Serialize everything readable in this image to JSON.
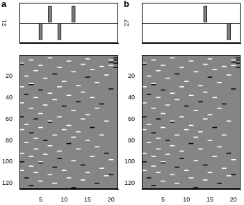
{
  "chart_data": [
    {
      "type": "bar",
      "title": "a",
      "y_label": "21",
      "x": [
        5,
        7,
        9,
        12
      ],
      "values": [
        -1,
        1,
        -1,
        1
      ],
      "color": "#808080",
      "xlim": [
        0.5,
        21.5
      ],
      "xticks": [],
      "ylim": [
        -1.2,
        1.2
      ],
      "yticks": [
        0
      ],
      "grid": true,
      "tick_labels": false
    },
    {
      "type": "heatmap",
      "fill_value": 0,
      "zlim": [
        -1,
        1
      ],
      "cells": [
        [
          1,
          8,
          1
        ],
        [
          1,
          9,
          -1
        ],
        [
          1,
          30,
          1
        ],
        [
          1,
          45,
          1
        ],
        [
          1,
          58,
          -1
        ],
        [
          1,
          70,
          1
        ],
        [
          1,
          92,
          1
        ],
        [
          1,
          100,
          -1
        ],
        [
          1,
          108,
          1
        ],
        [
          2,
          20,
          1
        ],
        [
          2,
          37,
          -1
        ],
        [
          2,
          65,
          1
        ],
        [
          2,
          82,
          1
        ],
        [
          2,
          115,
          -1
        ],
        [
          3,
          5,
          1
        ],
        [
          3,
          27,
          1
        ],
        [
          3,
          28,
          -1
        ],
        [
          3,
          50,
          1
        ],
        [
          3,
          73,
          -1
        ],
        [
          3,
          95,
          1
        ],
        [
          3,
          104,
          1
        ],
        [
          3,
          122,
          -1
        ],
        [
          4,
          15,
          1
        ],
        [
          4,
          40,
          1
        ],
        [
          4,
          60,
          -1
        ],
        [
          4,
          78,
          1
        ],
        [
          4,
          88,
          1
        ],
        [
          4,
          110,
          1
        ],
        [
          5,
          10,
          1
        ],
        [
          5,
          33,
          -1
        ],
        [
          5,
          55,
          1
        ],
        [
          5,
          68,
          1
        ],
        [
          5,
          100,
          1
        ],
        [
          5,
          101,
          -1
        ],
        [
          5,
          118,
          1
        ],
        [
          6,
          22,
          1
        ],
        [
          6,
          47,
          1
        ],
        [
          6,
          80,
          -1
        ],
        [
          6,
          93,
          1
        ],
        [
          7,
          3,
          1
        ],
        [
          7,
          36,
          1
        ],
        [
          7,
          62,
          1
        ],
        [
          7,
          63,
          -1
        ],
        [
          7,
          85,
          1
        ],
        [
          7,
          112,
          1
        ],
        [
          8,
          18,
          -1
        ],
        [
          8,
          42,
          1
        ],
        [
          8,
          75,
          1
        ],
        [
          8,
          105,
          -1
        ],
        [
          8,
          120,
          1
        ],
        [
          9,
          12,
          1
        ],
        [
          9,
          30,
          1
        ],
        [
          9,
          58,
          1
        ],
        [
          9,
          90,
          1
        ],
        [
          9,
          97,
          -1
        ],
        [
          10,
          25,
          1
        ],
        [
          10,
          48,
          -1
        ],
        [
          10,
          70,
          1
        ],
        [
          10,
          108,
          1
        ],
        [
          11,
          6,
          1
        ],
        [
          11,
          38,
          1
        ],
        [
          11,
          66,
          1
        ],
        [
          11,
          83,
          -1
        ],
        [
          11,
          115,
          1
        ],
        [
          12,
          16,
          1
        ],
        [
          12,
          52,
          1
        ],
        [
          12,
          77,
          1
        ],
        [
          12,
          99,
          1
        ],
        [
          12,
          124,
          -1
        ],
        [
          13,
          29,
          1
        ],
        [
          13,
          44,
          -1
        ],
        [
          13,
          72,
          1
        ],
        [
          13,
          88,
          1
        ],
        [
          14,
          9,
          1
        ],
        [
          14,
          35,
          1
        ],
        [
          14,
          60,
          1
        ],
        [
          14,
          103,
          -1
        ],
        [
          14,
          117,
          1
        ],
        [
          15,
          4,
          1
        ],
        [
          15,
          21,
          -1
        ],
        [
          15,
          56,
          1
        ],
        [
          15,
          80,
          1
        ],
        [
          15,
          110,
          1
        ],
        [
          16,
          14,
          1
        ],
        [
          16,
          40,
          1
        ],
        [
          16,
          68,
          -1
        ],
        [
          16,
          95,
          1
        ],
        [
          17,
          26,
          1
        ],
        [
          17,
          50,
          1
        ],
        [
          17,
          86,
          1
        ],
        [
          17,
          120,
          -1
        ],
        [
          18,
          11,
          1
        ],
        [
          18,
          46,
          -1
        ],
        [
          18,
          75,
          1
        ],
        [
          18,
          106,
          1
        ],
        [
          19,
          19,
          1
        ],
        [
          19,
          62,
          1
        ],
        [
          19,
          92,
          -1
        ],
        [
          19,
          113,
          1
        ],
        [
          20,
          5,
          1
        ],
        [
          20,
          7,
          -1
        ],
        [
          20,
          10,
          1
        ],
        [
          20,
          32,
          -1
        ],
        [
          20,
          98,
          1
        ],
        [
          20,
          112,
          -1
        ],
        [
          21,
          3,
          -1
        ],
        [
          21,
          5,
          -1
        ],
        [
          21,
          8,
          -1
        ],
        [
          21,
          12,
          -1
        ]
      ],
      "xlim": [
        0.5,
        21.5
      ],
      "xticks": [
        5,
        10,
        15,
        20
      ],
      "ylim": [
        125.5,
        0.5
      ],
      "yticks": [
        20,
        40,
        60,
        80,
        100,
        120
      ]
    },
    {
      "type": "bar",
      "title": "b",
      "y_label": "27",
      "x": [
        14,
        19
      ],
      "values": [
        1,
        -1
      ],
      "color": "#808080",
      "xlim": [
        0.5,
        21.5
      ],
      "xticks": [],
      "ylim": [
        -1.2,
        1.2
      ],
      "yticks": [
        0
      ],
      "grid": true,
      "tick_labels": false
    },
    {
      "type": "heatmap",
      "fill_value": 0,
      "zlim": [
        -1,
        1
      ],
      "cells": [
        [
          1,
          8,
          1
        ],
        [
          1,
          9,
          -1
        ],
        [
          1,
          30,
          1
        ],
        [
          1,
          45,
          1
        ],
        [
          1,
          58,
          -1
        ],
        [
          1,
          70,
          1
        ],
        [
          1,
          92,
          1
        ],
        [
          1,
          100,
          -1
        ],
        [
          1,
          108,
          1
        ],
        [
          2,
          20,
          1
        ],
        [
          2,
          37,
          -1
        ],
        [
          2,
          65,
          1
        ],
        [
          2,
          82,
          1
        ],
        [
          2,
          115,
          -1
        ],
        [
          3,
          5,
          1
        ],
        [
          3,
          27,
          1
        ],
        [
          3,
          28,
          -1
        ],
        [
          3,
          50,
          1
        ],
        [
          3,
          73,
          -1
        ],
        [
          3,
          95,
          1
        ],
        [
          3,
          104,
          1
        ],
        [
          3,
          122,
          -1
        ],
        [
          4,
          15,
          1
        ],
        [
          4,
          40,
          1
        ],
        [
          4,
          60,
          -1
        ],
        [
          4,
          78,
          1
        ],
        [
          4,
          88,
          1
        ],
        [
          4,
          110,
          1
        ],
        [
          5,
          10,
          1
        ],
        [
          5,
          33,
          -1
        ],
        [
          5,
          55,
          1
        ],
        [
          5,
          68,
          1
        ],
        [
          5,
          100,
          1
        ],
        [
          5,
          101,
          -1
        ],
        [
          5,
          118,
          1
        ],
        [
          6,
          22,
          1
        ],
        [
          6,
          47,
          1
        ],
        [
          6,
          80,
          -1
        ],
        [
          6,
          93,
          1
        ],
        [
          7,
          3,
          1
        ],
        [
          7,
          36,
          1
        ],
        [
          7,
          62,
          1
        ],
        [
          7,
          63,
          -1
        ],
        [
          7,
          85,
          1
        ],
        [
          7,
          112,
          1
        ],
        [
          8,
          18,
          -1
        ],
        [
          8,
          42,
          1
        ],
        [
          8,
          75,
          1
        ],
        [
          8,
          105,
          -1
        ],
        [
          8,
          120,
          1
        ],
        [
          9,
          12,
          1
        ],
        [
          9,
          30,
          1
        ],
        [
          9,
          58,
          1
        ],
        [
          9,
          90,
          1
        ],
        [
          9,
          97,
          -1
        ],
        [
          10,
          25,
          1
        ],
        [
          10,
          48,
          -1
        ],
        [
          10,
          70,
          1
        ],
        [
          10,
          108,
          1
        ],
        [
          11,
          6,
          1
        ],
        [
          11,
          38,
          1
        ],
        [
          11,
          66,
          1
        ],
        [
          11,
          83,
          -1
        ],
        [
          11,
          115,
          1
        ],
        [
          12,
          16,
          1
        ],
        [
          12,
          52,
          1
        ],
        [
          12,
          77,
          1
        ],
        [
          12,
          99,
          1
        ],
        [
          12,
          124,
          -1
        ],
        [
          13,
          29,
          1
        ],
        [
          13,
          44,
          -1
        ],
        [
          13,
          72,
          1
        ],
        [
          13,
          88,
          1
        ],
        [
          14,
          9,
          1
        ],
        [
          14,
          35,
          1
        ],
        [
          14,
          60,
          1
        ],
        [
          14,
          103,
          -1
        ],
        [
          14,
          117,
          1
        ],
        [
          15,
          4,
          1
        ],
        [
          15,
          21,
          -1
        ],
        [
          15,
          56,
          1
        ],
        [
          15,
          80,
          1
        ],
        [
          15,
          110,
          1
        ],
        [
          16,
          14,
          1
        ],
        [
          16,
          40,
          1
        ],
        [
          16,
          68,
          -1
        ],
        [
          16,
          95,
          1
        ],
        [
          17,
          26,
          1
        ],
        [
          17,
          50,
          1
        ],
        [
          17,
          86,
          1
        ],
        [
          17,
          120,
          -1
        ],
        [
          18,
          11,
          1
        ],
        [
          18,
          46,
          -1
        ],
        [
          18,
          75,
          1
        ],
        [
          18,
          106,
          1
        ],
        [
          19,
          19,
          1
        ],
        [
          19,
          62,
          1
        ],
        [
          19,
          92,
          -1
        ],
        [
          19,
          113,
          1
        ],
        [
          20,
          5,
          1
        ],
        [
          20,
          7,
          -1
        ],
        [
          20,
          10,
          1
        ],
        [
          20,
          32,
          -1
        ],
        [
          20,
          98,
          1
        ],
        [
          20,
          112,
          -1
        ],
        [
          21,
          3,
          -1
        ],
        [
          21,
          5,
          -1
        ],
        [
          21,
          8,
          -1
        ],
        [
          21,
          12,
          -1
        ]
      ],
      "xlim": [
        0.5,
        21.5
      ],
      "xticks": [
        5,
        10,
        15,
        20
      ],
      "ylim": [
        125.5,
        0.5
      ],
      "yticks": [
        20,
        40,
        60,
        80,
        100,
        120
      ]
    }
  ]
}
